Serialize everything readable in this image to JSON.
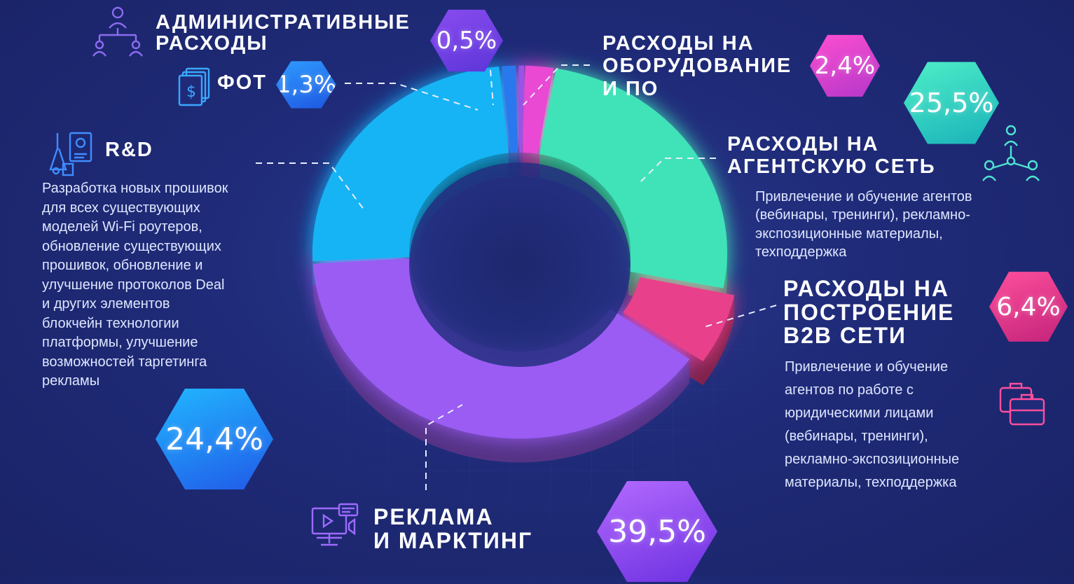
{
  "chart_data": {
    "type": "pie",
    "categories": [
      "Расходы на оборудование и ПО",
      "Расходы на агентскую сеть",
      "Расходы на построение B2B сети",
      "Реклама и марктинг",
      "R&D",
      "ФОТ",
      "Административные расходы"
    ],
    "values": [
      2.4,
      25.5,
      6.4,
      39.5,
      24.4,
      1.3,
      0.5
    ],
    "value_labels": [
      "2,4%",
      "25,5%",
      "6,4%",
      "39,5%",
      "24,4%",
      "1,3%",
      "0,5%"
    ],
    "colors": [
      "#e94ad3",
      "#3fe3b8",
      "#e8408a",
      "#9a5cf3",
      "#18b4f5",
      "#2a78ee",
      "#9b52e6"
    ],
    "donut": true,
    "title": ""
  },
  "labels": {
    "admin": "АДМИНИСТРАТИВНЫЕ\nРАСХОДЫ",
    "fot": "ФОТ",
    "equipment": "РАСХОДЫ НА\nОБОРУДОВАНИЕ\nИ ПО",
    "agent": "РАСХОДЫ НА\nАГЕНТСКУЮ СЕТЬ",
    "rnd": "R&D",
    "b2b": "РАСХОДЫ НА\nПОСТРОЕНИЕ\nB2B СЕТИ",
    "ads": "РЕКЛАМА\nИ МАРКТИНГ"
  },
  "descriptions": {
    "agent": "Привлечение и обучение агентов\n(вебинары, тренинги), рекламно-\nэкспозиционные материалы,\nтехподдержка",
    "rnd": "Разработка новых прошивок\nдля всех существующих\nмоделей Wi-Fi роутеров,\nобновление существующих\nпрошивок, обновление и\nулучшение протоколов Deal\nи других элементов\nблокчейн технологии\nплатформы, улучшение\nвозможностей таргетинга\nрекламы",
    "b2b": "Привлечение и обучение\nагентов по работе с\nюридическими лицами\n(вебинары, тренинги),\nрекламно-экспозиционные\nматериалы, техподдержка"
  },
  "hex_colors": {
    "admin": [
      "#8a4cf0",
      "#5b35d8"
    ],
    "fot": [
      "#2f9dff",
      "#1d55e0"
    ],
    "equipment": [
      "#ff4fd1",
      "#b336c9"
    ],
    "agent": [
      "#4ff0c8",
      "#18b0b9"
    ],
    "b2b": [
      "#ff4f9d",
      "#c2237a"
    ],
    "rnd": [
      "#21b8ff",
      "#2158e8"
    ],
    "ads": [
      "#b56bff",
      "#6a2fe0"
    ]
  },
  "icons": {
    "admin": "org-structure-icon",
    "fot": "money-bills-icon",
    "rnd": "research-icon",
    "agent": "agent-network-icon",
    "b2b": "briefcases-icon",
    "ads": "media-marketing-icon"
  }
}
